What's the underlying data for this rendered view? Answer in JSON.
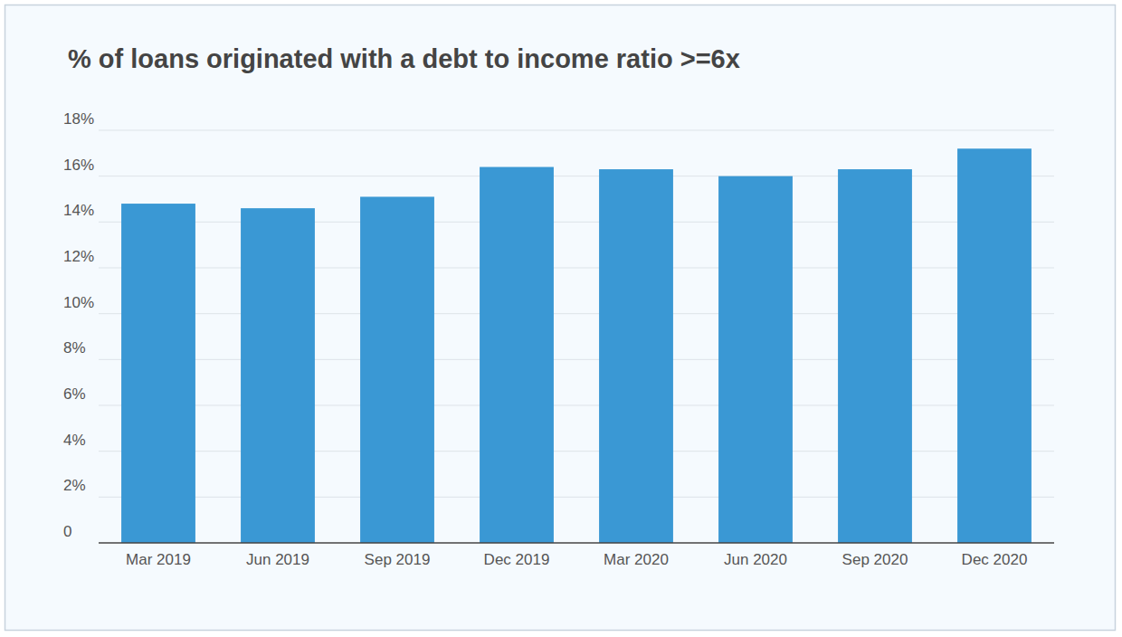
{
  "chart_data": {
    "type": "bar",
    "title": "% of loans originated with a debt to income ratio >=6x",
    "categories": [
      "Mar 2019",
      "Jun 2019",
      "Sep 2019",
      "Dec 2019",
      "Mar 2020",
      "Jun 2020",
      "Sep 2020",
      "Dec 2020"
    ],
    "values": [
      14.8,
      14.6,
      15.1,
      16.4,
      16.3,
      16.0,
      16.3,
      17.2
    ],
    "color": "#3a98d4",
    "ylim": [
      0,
      18
    ],
    "yticks": [
      0,
      {
        "value": 2,
        "label": "2%"
      },
      {
        "value": 4,
        "label": "4%"
      },
      {
        "value": 6,
        "label": "6%"
      },
      {
        "value": 8,
        "label": "8%"
      },
      {
        "value": 10,
        "label": "10%"
      },
      {
        "value": 12,
        "label": "12%"
      },
      {
        "value": 14,
        "label": "14%"
      },
      {
        "value": 16,
        "label": "16%"
      },
      {
        "value": 18,
        "label": "18%"
      }
    ],
    "grid": true
  }
}
